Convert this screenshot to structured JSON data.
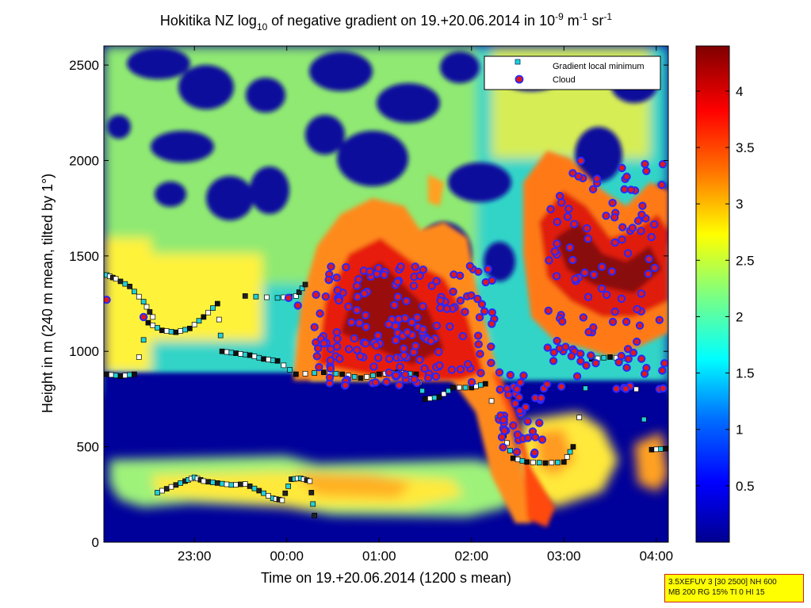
{
  "chart_data": {
    "type": "heatmap",
    "title": {
      "prefix": "Hokitika NZ log",
      "sub": "10",
      "mid": " of negative gradient on 19.+20.06.2014 in 10",
      "exp1": "-9",
      "unit1": " m",
      "exp2": "-1",
      "unit2": " sr",
      "exp3": "-1"
    },
    "xlabel": "Time on 19.+20.06.2014 (1200 s mean)",
    "ylabel": "Height in m (240 m mean, tilted by 1°)",
    "x_range_hours": [
      22.02,
      28.13
    ],
    "x_ticks": [
      {
        "hour": 23,
        "label": "23:00"
      },
      {
        "hour": 24,
        "label": "00:00"
      },
      {
        "hour": 25,
        "label": "01:00"
      },
      {
        "hour": 26,
        "label": "02:00"
      },
      {
        "hour": 27,
        "label": "03:00"
      },
      {
        "hour": 28,
        "label": "04:00"
      }
    ],
    "ylim": [
      0,
      2600
    ],
    "y_ticks": [
      0,
      500,
      1000,
      1500,
      2000,
      2500
    ],
    "colorbar": {
      "range": [
        0,
        4.4
      ],
      "ticks": [
        0.5,
        1,
        1.5,
        2,
        2.5,
        3,
        3.5,
        4
      ],
      "colormap": "jet"
    },
    "legend": {
      "position": "top-right",
      "entries": [
        {
          "name": "Gradient local minimum",
          "marker": "square",
          "color": "#22d0d8"
        },
        {
          "name": "Cloud",
          "marker": "circle",
          "color": "#e01818",
          "edge": "#2828ff"
        }
      ]
    },
    "field_description": {
      "low_layer_band_m": [
        100,
        500
      ],
      "low_layer_log10": 2.7,
      "boundary_layer_top_m": [
        850,
        1000
      ],
      "upper_region_log10_mean": 2.5
    },
    "gradient_minimum_series": [
      {
        "name": "lower layer",
        "points": [
          [
            22.6,
            260
          ],
          [
            22.75,
            290
          ],
          [
            22.9,
            320
          ],
          [
            23.0,
            340
          ],
          [
            23.1,
            320
          ],
          [
            23.25,
            310
          ],
          [
            23.4,
            300
          ],
          [
            23.55,
            305
          ],
          [
            23.7,
            270
          ],
          [
            23.85,
            230
          ],
          [
            23.95,
            220
          ],
          [
            24.05,
            330
          ],
          [
            24.15,
            335
          ],
          [
            24.25,
            320
          ],
          [
            24.3,
            140
          ]
        ]
      },
      {
        "name": "boundary layer",
        "points": [
          [
            22.05,
            880
          ],
          [
            22.2,
            870
          ],
          [
            22.35,
            880
          ],
          [
            22.5,
            1150
          ],
          [
            22.65,
            1110
          ],
          [
            22.8,
            1100
          ],
          [
            22.95,
            1120
          ],
          [
            23.1,
            1180
          ],
          [
            23.25,
            1250
          ],
          [
            23.3,
            1000
          ],
          [
            23.45,
            990
          ],
          [
            23.6,
            980
          ],
          [
            23.75,
            960
          ],
          [
            23.9,
            950
          ],
          [
            24.1,
            880
          ],
          [
            24.4,
            890
          ],
          [
            24.6,
            880
          ],
          [
            24.8,
            860
          ],
          [
            25.0,
            880
          ],
          [
            25.2,
            890
          ],
          [
            25.4,
            880
          ],
          [
            25.5,
            750
          ],
          [
            25.65,
            760
          ],
          [
            25.8,
            810
          ],
          [
            26.0,
            810
          ],
          [
            26.15,
            830
          ],
          [
            26.35,
            560
          ],
          [
            26.45,
            440
          ],
          [
            26.6,
            420
          ],
          [
            26.8,
            415
          ],
          [
            27.0,
            420
          ],
          [
            27.1,
            500
          ],
          [
            27.3,
            960
          ],
          [
            27.5,
            970
          ],
          [
            27.7,
            960
          ],
          [
            27.95,
            485
          ],
          [
            28.1,
            490
          ]
        ]
      },
      {
        "name": "evening residual",
        "points": [
          [
            22.05,
            1400
          ],
          [
            22.15,
            1380
          ],
          [
            22.3,
            1340
          ],
          [
            22.45,
            1260
          ],
          [
            22.55,
            1180
          ],
          [
            23.55,
            1290
          ],
          [
            23.9,
            1280
          ],
          [
            24.1,
            1290
          ],
          [
            24.2,
            1350
          ]
        ]
      }
    ],
    "cloud_detections": [
      {
        "name": "scattered low cloud",
        "points": [
          [
            22.05,
            1270
          ],
          [
            22.45,
            1180
          ],
          [
            24.02,
            1280
          ],
          [
            24.12,
            1240
          ]
        ]
      },
      {
        "name": "cloud band 1",
        "x_range": [
          24.3,
          26.3
        ],
        "y_range": [
          820,
          1450
        ]
      },
      {
        "name": "cloud band 2",
        "x_range": [
          26.3,
          26.8
        ],
        "y_range": [
          430,
          900
        ]
      },
      {
        "name": "cloud band 3",
        "x_range": [
          26.8,
          28.1
        ],
        "y_range": [
          800,
          2000
        ]
      }
    ]
  },
  "param_box": {
    "line1": "3.5XEFUV 3 [30 2500] NH 600",
    "line2": "MB 200 RG 15% TI 0 HI 15"
  }
}
